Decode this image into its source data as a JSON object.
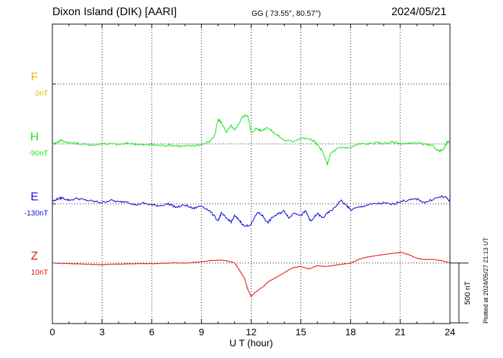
{
  "header": {
    "station": "Dixon Island (DIK)  [AARI]",
    "coords": "GG ( 73.55°,  80.57°)",
    "date": "2024/05/21"
  },
  "footer": {
    "plotted": "Plotted at 2024/05/27 21:13 UT"
  },
  "colors": {
    "F": "#f5b400",
    "H": "#22e622",
    "E": "#1010d8",
    "Z": "#e01010",
    "axis": "#000000"
  },
  "chart_data": {
    "type": "line",
    "title": "Dixon Island (DIK)  [AARI]",
    "xlabel": "U T (hour)",
    "ylabel": "",
    "xlim": [
      0,
      24
    ],
    "x_ticks": [
      0,
      3,
      6,
      9,
      12,
      15,
      18,
      21,
      24
    ],
    "x_tick_labels": [
      "0",
      "3",
      "6",
      "9",
      "12",
      "15",
      "18",
      "21",
      "24"
    ],
    "scale_bar_label": "500 nT",
    "scale_bar_nT": 500,
    "series": [
      {
        "name": "F",
        "baseline_label": "0nT",
        "color": "#f5b400",
        "x": [],
        "values": []
      },
      {
        "name": "H",
        "baseline_label": "-90nT",
        "color": "#22e622",
        "x": [
          0,
          0.25,
          0.5,
          1,
          1.5,
          2,
          2.5,
          3,
          3.5,
          4,
          4.5,
          5,
          5.5,
          6,
          6.5,
          7,
          7.5,
          8,
          8.5,
          9,
          9.5,
          9.8,
          10,
          10.2,
          10.5,
          10.8,
          11,
          11.2,
          11.5,
          11.8,
          12,
          12.3,
          12.6,
          13,
          13.3,
          13.6,
          14,
          14.5,
          15,
          15.5,
          15.8,
          16,
          16.3,
          16.6,
          16.8,
          17.2,
          17.6,
          18,
          18.5,
          19,
          19.5,
          20,
          20.5,
          21,
          21.5,
          22,
          22.5,
          23,
          23.3,
          23.6,
          23.8,
          24
        ],
        "values": [
          0,
          10,
          30,
          10,
          5,
          -5,
          -10,
          5,
          0,
          -5,
          5,
          0,
          -10,
          -5,
          -15,
          -10,
          -15,
          -20,
          -15,
          -5,
          20,
          70,
          200,
          180,
          100,
          150,
          110,
          160,
          230,
          240,
          90,
          130,
          110,
          140,
          100,
          70,
          30,
          20,
          50,
          40,
          25,
          -10,
          -60,
          -170,
          -80,
          -40,
          -30,
          -30,
          0,
          0,
          10,
          5,
          15,
          5,
          0,
          10,
          -5,
          -20,
          -60,
          -50,
          10,
          30
        ]
      },
      {
        "name": "E",
        "baseline_label": "-130nT",
        "color": "#1010d8",
        "x": [
          0,
          0.3,
          0.6,
          1,
          1.5,
          2,
          2.5,
          3,
          3.5,
          4,
          4.5,
          5,
          5.5,
          6,
          6.5,
          7,
          7.5,
          8,
          8.5,
          9,
          9.5,
          10,
          10.2,
          10.5,
          10.8,
          11,
          11.3,
          11.6,
          12,
          12.4,
          12.7,
          13,
          13.3,
          13.7,
          14,
          14.3,
          14.6,
          15,
          15.3,
          15.6,
          16,
          16.3,
          16.6,
          17,
          17.4,
          17.8,
          18,
          18.5,
          19,
          19.5,
          20,
          20.5,
          21,
          21.5,
          22,
          22.5,
          23,
          23.5,
          23.8,
          24
        ],
        "values": [
          20,
          40,
          50,
          30,
          45,
          30,
          20,
          10,
          30,
          15,
          20,
          -10,
          5,
          -10,
          -15,
          0,
          -30,
          -10,
          -40,
          -15,
          -60,
          -140,
          -80,
          -120,
          -150,
          -100,
          -140,
          -190,
          -170,
          -70,
          -100,
          -160,
          -110,
          -80,
          -60,
          -120,
          -70,
          -100,
          -60,
          -150,
          -80,
          -120,
          -80,
          -40,
          30,
          -20,
          -50,
          -30,
          -10,
          0,
          5,
          -5,
          20,
          30,
          40,
          10,
          40,
          60,
          50,
          20
        ]
      },
      {
        "name": "Z",
        "baseline_label": "10nT",
        "color": "#e01010",
        "x": [
          0,
          1,
          2,
          3,
          4,
          5,
          6,
          7,
          8,
          9,
          10,
          10.5,
          11,
          11.3,
          11.6,
          11.8,
          12,
          12.2,
          12.5,
          12.8,
          13,
          13.5,
          14,
          14.5,
          15,
          15.5,
          16,
          16.5,
          17,
          17.5,
          18,
          18.5,
          19,
          19.5,
          20,
          20.5,
          21,
          21.5,
          22,
          22.5,
          23,
          23.5,
          24
        ],
        "values": [
          0,
          -5,
          -10,
          -15,
          -10,
          -5,
          -5,
          0,
          0,
          10,
          25,
          20,
          0,
          -60,
          -130,
          -220,
          -280,
          -250,
          -220,
          -190,
          -160,
          -120,
          -80,
          -40,
          -30,
          -50,
          -20,
          -30,
          -20,
          -10,
          0,
          30,
          50,
          60,
          70,
          80,
          90,
          70,
          40,
          30,
          30,
          20,
          0
        ]
      }
    ]
  }
}
